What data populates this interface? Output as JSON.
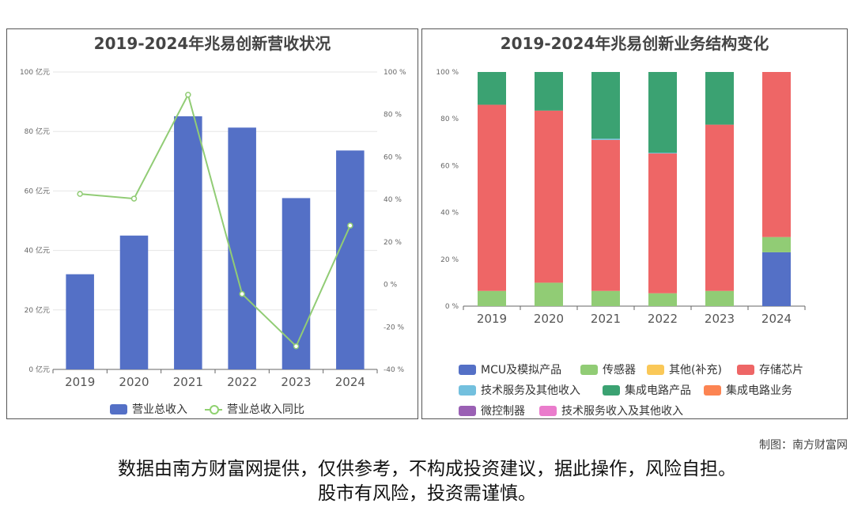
{
  "credit": "制图：南方财富网",
  "disclaimer": {
    "line1": "数据由南方财富网提供，仅供参考，不构成投资建议，据此操作，风险自担。",
    "line2": "股市有风险，投资需谨慎。"
  },
  "chart_data": [
    {
      "type": "bar",
      "title": "2019-2024年兆易创新营收状况",
      "categories": [
        "2019",
        "2020",
        "2021",
        "2022",
        "2023",
        "2024"
      ],
      "y_left": {
        "unit": "亿元",
        "ylim": [
          0,
          100
        ],
        "ticks": [
          0,
          20,
          40,
          60,
          80,
          100
        ],
        "tick_labels": [
          "0 亿元",
          "20 亿元",
          "40 亿元",
          "60 亿元",
          "80 亿元",
          "100 亿元"
        ]
      },
      "y_right": {
        "unit": "%",
        "ylim": [
          -40,
          100
        ],
        "ticks": [
          -40,
          -20,
          0,
          20,
          40,
          60,
          80,
          100
        ],
        "tick_labels": [
          "-40 %",
          "-20 %",
          "0 %",
          "20 %",
          "40 %",
          "60 %",
          "80 %",
          "100 %"
        ]
      },
      "series": [
        {
          "name": "营业总收入",
          "kind": "bar",
          "axis": "left",
          "color": "#5470c6",
          "values": [
            32.0,
            45.0,
            85.1,
            81.3,
            57.6,
            73.6
          ]
        },
        {
          "name": "营业总收入同比",
          "kind": "line",
          "axis": "right",
          "color": "#91cc75",
          "values": [
            42.6,
            40.4,
            89.3,
            -4.5,
            -29.1,
            27.7
          ]
        }
      ],
      "grid": true,
      "legend": "bottom"
    },
    {
      "type": "bar",
      "stacked": true,
      "title": "2019-2024年兆易创新业务结构变化",
      "categories": [
        "2019",
        "2020",
        "2021",
        "2022",
        "2023",
        "2024"
      ],
      "ylim": [
        0,
        100
      ],
      "ticks": [
        0,
        20,
        40,
        60,
        80,
        100
      ],
      "tick_labels": [
        "0 %",
        "20 %",
        "40 %",
        "60 %",
        "80 %",
        "100 %"
      ],
      "series": [
        {
          "name": "MCU及模拟产品",
          "color": "#5470c6",
          "values": [
            0,
            0,
            0,
            0,
            0,
            23
          ]
        },
        {
          "name": "传感器",
          "color": "#91cc75",
          "values": [
            6.5,
            10,
            6.5,
            5.5,
            6.5,
            6.5
          ]
        },
        {
          "name": "其他(补充)",
          "color": "#fac858",
          "values": [
            0,
            0,
            0,
            0,
            0,
            0
          ]
        },
        {
          "name": "存储芯片",
          "color": "#ee6666",
          "values": [
            79.5,
            73.5,
            64.5,
            59.7,
            71,
            70.5
          ]
        },
        {
          "name": "技术服务及其他收入",
          "color": "#73c0de",
          "values": [
            0,
            0,
            0.5,
            0.3,
            0,
            0
          ]
        },
        {
          "name": "集成电路产品",
          "color": "#3ba272",
          "values": [
            14,
            16.5,
            28.5,
            34.5,
            22.5,
            0
          ]
        },
        {
          "name": "集成电路业务",
          "color": "#fc8452",
          "values": [
            0,
            0,
            0,
            0,
            0,
            0
          ]
        },
        {
          "name": "微控制器",
          "color": "#9a60b4",
          "values": [
            0,
            0,
            0,
            0,
            0,
            0
          ]
        },
        {
          "name": "技术服务收入及其他收入",
          "color": "#ea7ccc",
          "values": [
            0,
            0,
            0,
            0,
            0,
            0
          ]
        }
      ],
      "grid": false,
      "legend": "bottom"
    }
  ]
}
